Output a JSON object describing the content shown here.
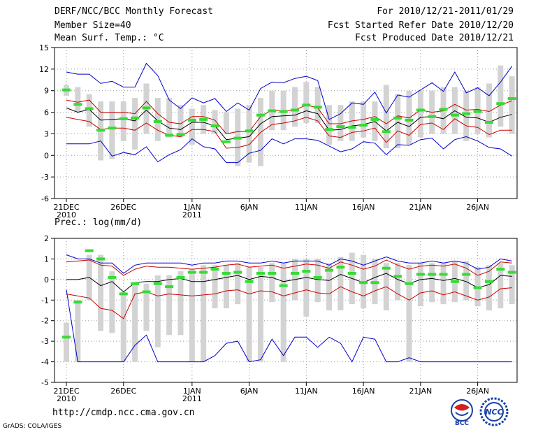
{
  "header": {
    "title": "DERF/NCC/BCC Monthly Forecast",
    "member_size": "Member Size=40",
    "variable": "Mean Surf. Temp.: °C",
    "forecast_period": "For 2010/12/21-2011/01/29",
    "start_date": "Fcst Started Refer Date 2010/12/20",
    "produced_date": "Fcst Produced Date 2010/12/21"
  },
  "footer": {
    "url": "http://cmdp.ncc.cma.gov.cn",
    "grads": "GrADS: COLA/IGES",
    "logo_left_text": "BCC",
    "logo_right_text": "NCC"
  },
  "colors": {
    "box": "#d3d3d3",
    "median": "#33dd33",
    "mean": "#000000",
    "spread": "#cc0000",
    "extreme": "#0000cc",
    "axis": "#000000"
  },
  "chart_data": [
    {
      "type": "box-ensemble",
      "title": "Mean Surf. Temp.: °C",
      "ylim": [
        -6,
        15
      ],
      "yticks": [
        -6,
        -3,
        0,
        3,
        6,
        9,
        12,
        15
      ],
      "x_tick_labels": [
        {
          "day": 1,
          "label": "21DEC",
          "sub": "2010"
        },
        {
          "day": 6,
          "label": "26DEC",
          "sub": ""
        },
        {
          "day": 12,
          "label": "1JAN",
          "sub": "2011"
        },
        {
          "day": 17,
          "label": "6JAN",
          "sub": ""
        },
        {
          "day": 22,
          "label": "11JAN",
          "sub": ""
        },
        {
          "day": 27,
          "label": "16JAN",
          "sub": ""
        },
        {
          "day": 32,
          "label": "21JAN",
          "sub": ""
        },
        {
          "day": 37,
          "label": "26JAN",
          "sub": ""
        }
      ],
      "box_low": [
        8.3,
        6,
        4,
        -0.7,
        -0.5,
        2,
        0.8,
        3,
        2,
        2.5,
        2.5,
        1.5,
        3,
        3,
        3,
        -1.5,
        -1,
        -1.5,
        3.5,
        3.5,
        4,
        4.5,
        4.5,
        1.5,
        2,
        2,
        2.5,
        2,
        1,
        1,
        1.5,
        2.5,
        3,
        3,
        3,
        2,
        3,
        2.5,
        4,
        3
      ],
      "box_high": [
        9.8,
        9.5,
        8.5,
        7.5,
        7.5,
        7.5,
        8,
        10,
        8,
        8,
        7,
        6.5,
        7,
        6.3,
        6,
        6.5,
        7,
        8,
        9,
        9,
        9.5,
        10.2,
        9.5,
        7,
        7,
        7.5,
        7.5,
        7.5,
        9.8,
        8.5,
        9,
        9,
        9,
        9.5,
        9.5,
        9,
        9.5,
        10,
        12.5,
        11
      ],
      "median": [
        9.1,
        7.1,
        6.5,
        3.5,
        3.8,
        5.1,
        5.2,
        6.6,
        4.7,
        2.8,
        2.9,
        4.9,
        5.0,
        4.1,
        1.9,
        2.4,
        3.4,
        5.6,
        6.2,
        6.1,
        6.3,
        7.0,
        6.7,
        3.6,
        4.0,
        3.9,
        4.2,
        5.0,
        3.3,
        5.2,
        4.9,
        6.3,
        5.4,
        6.4,
        5.6,
        5.8,
        6.1,
        4.6,
        7.2,
        7.9
      ],
      "mean": [
        6.6,
        6.0,
        6.4,
        4.9,
        5.0,
        5.1,
        4.8,
        6.3,
        4.8,
        3.8,
        3.6,
        4.6,
        4.6,
        4.1,
        2.2,
        2.4,
        2.6,
        4.4,
        5.4,
        5.5,
        5.6,
        6.2,
        5.8,
        3.5,
        3.6,
        4.1,
        4.3,
        4.7,
        3.4,
        4.6,
        4.0,
        5.3,
        5.4,
        5.1,
        6.2,
        5.3,
        5.2,
        4.6,
        5.3,
        5.7
      ],
      "upper_sd": [
        7.7,
        7.4,
        7.7,
        6.0,
        6.0,
        6.0,
        5.8,
        7.5,
        5.8,
        4.6,
        4.4,
        5.4,
        5.4,
        4.9,
        3.0,
        3.3,
        3.3,
        5.4,
        6.3,
        6.2,
        6.3,
        7.0,
        6.6,
        4.4,
        4.4,
        4.8,
        5.0,
        5.4,
        4.4,
        5.5,
        5.2,
        6.3,
        6.0,
        6.2,
        7.1,
        6.3,
        6.4,
        6.1,
        7.0,
        7.6
      ],
      "lower_sd": [
        5.3,
        5.0,
        4.7,
        3.6,
        3.8,
        3.8,
        3.5,
        4.5,
        3.5,
        2.8,
        2.6,
        3.6,
        3.6,
        3.3,
        1.0,
        1.1,
        1.5,
        3.2,
        4.3,
        4.5,
        4.8,
        5.3,
        4.8,
        2.7,
        2.5,
        3.2,
        3.4,
        3.8,
        1.8,
        3.4,
        2.8,
        4.3,
        4.5,
        3.6,
        5.1,
        4.1,
        3.9,
        2.9,
        3.5,
        3.5
      ],
      "max": [
        11.6,
        11.3,
        11.3,
        10.0,
        10.3,
        9.5,
        9.5,
        12.8,
        11.1,
        7.7,
        6.5,
        8.0,
        7.3,
        7.9,
        6.1,
        7.3,
        6.3,
        9.3,
        10.2,
        10.1,
        10.7,
        11.0,
        10.4,
        5.0,
        5.8,
        7.3,
        7.1,
        8.8,
        5.9,
        8.4,
        8.1,
        9.1,
        10.1,
        8.9,
        11.6,
        8.7,
        9.4,
        8.3,
        10.2,
        12.4
      ],
      "min": [
        1.6,
        1.6,
        1.6,
        2.0,
        -0.1,
        0.4,
        0.1,
        1.2,
        -0.9,
        0.1,
        0.8,
        2.3,
        1.2,
        0.9,
        -1.0,
        -1.0,
        0.3,
        0.7,
        2.3,
        1.6,
        2.3,
        2.3,
        2.1,
        1.3,
        0.5,
        0.9,
        1.9,
        1.7,
        0.1,
        1.5,
        1.4,
        2.2,
        2.4,
        0.9,
        2.2,
        2.6,
        2.0,
        1.1,
        0.9,
        -0.1
      ]
    },
    {
      "type": "box-ensemble",
      "title": "Prec.: log(mm/d)",
      "ylim": [
        -5,
        2
      ],
      "yticks": [
        -5,
        -4,
        -3,
        -2,
        -1,
        0,
        1,
        2
      ],
      "x_tick_labels": [
        {
          "day": 1,
          "label": "21DEC",
          "sub": "2010"
        },
        {
          "day": 6,
          "label": "26DEC",
          "sub": ""
        },
        {
          "day": 12,
          "label": "1JAN",
          "sub": "2011"
        },
        {
          "day": 17,
          "label": "6JAN",
          "sub": ""
        },
        {
          "day": 22,
          "label": "11JAN",
          "sub": ""
        },
        {
          "day": 27,
          "label": "16JAN",
          "sub": ""
        },
        {
          "day": 32,
          "label": "21JAN",
          "sub": ""
        },
        {
          "day": 37,
          "label": "26JAN",
          "sub": ""
        }
      ],
      "box_low": [
        -4,
        -4,
        -1,
        -2.5,
        -2.6,
        -4,
        -4,
        -2.5,
        -3.3,
        -2.7,
        -2.7,
        -4,
        -4,
        -1.4,
        -1.4,
        -1.2,
        -4,
        -4,
        -1.1,
        -4,
        -1.0,
        -1.8,
        -1.1,
        -1.5,
        -1.5,
        -1.2,
        -1.4,
        -1.2,
        -1.5,
        -1.0,
        -4,
        -1.3,
        -1.1,
        -1.2,
        -1.1,
        -1.0,
        -1.3,
        -1.5,
        -1.4,
        -1.2
      ],
      "box_high": [
        -2.1,
        -1.0,
        1.2,
        1.2,
        0.4,
        -0.6,
        -0.2,
        -0.2,
        0.2,
        0.2,
        0.4,
        0.5,
        0.7,
        0.7,
        0.7,
        0.8,
        0.6,
        0.6,
        0.8,
        0.8,
        1.0,
        1.0,
        1.0,
        0.8,
        1.1,
        1.3,
        1.2,
        1.0,
        0.8,
        0.8,
        0.7,
        0.8,
        0.8,
        0.8,
        0.9,
        0.9,
        0.6,
        0.7,
        0.8,
        0.7
      ],
      "median": [
        -2.8,
        -1.1,
        1.4,
        1.0,
        0.1,
        -0.7,
        -0.2,
        -0.6,
        -0.2,
        -0.35,
        0.1,
        0.35,
        0.35,
        0.5,
        0.3,
        0.35,
        -0.1,
        0.3,
        0.3,
        -0.3,
        0.3,
        0.4,
        0.1,
        0.45,
        0.6,
        0.3,
        -0.15,
        -0.15,
        0.55,
        0.15,
        -0.2,
        0.25,
        0.25,
        0.25,
        -0.1,
        0.25,
        -0.4,
        -0.1,
        0.5,
        0.35
      ],
      "mean": [
        0.0,
        0.0,
        0.1,
        -0.3,
        -0.1,
        -0.6,
        -0.15,
        -0.1,
        -0.1,
        0.0,
        0.05,
        -0.1,
        -0.1,
        0.0,
        0.1,
        0.2,
        0.0,
        0.15,
        0.1,
        -0.1,
        0.0,
        0.1,
        0.0,
        -0.05,
        0.25,
        0.05,
        -0.15,
        0.1,
        0.3,
        0.0,
        -0.2,
        0.0,
        0.05,
        -0.05,
        0.05,
        -0.1,
        -0.4,
        -0.25,
        0.2,
        0.15
      ],
      "upper_sd": [
        0.85,
        0.9,
        0.95,
        0.7,
        0.65,
        0.2,
        0.5,
        0.65,
        0.6,
        0.6,
        0.55,
        0.5,
        0.55,
        0.6,
        0.7,
        0.75,
        0.6,
        0.65,
        0.7,
        0.55,
        0.65,
        0.75,
        0.7,
        0.55,
        0.85,
        0.7,
        0.5,
        0.65,
        0.95,
        0.7,
        0.5,
        0.65,
        0.7,
        0.65,
        0.75,
        0.55,
        0.2,
        0.4,
        0.85,
        0.8
      ],
      "lower_sd": [
        -0.7,
        -0.8,
        -0.9,
        -1.4,
        -1.5,
        -1.9,
        -0.7,
        -0.6,
        -0.8,
        -0.7,
        -0.75,
        -0.8,
        -0.75,
        -0.7,
        -0.55,
        -0.5,
        -0.7,
        -0.55,
        -0.6,
        -0.8,
        -0.65,
        -0.5,
        -0.65,
        -0.7,
        -0.35,
        -0.6,
        -0.8,
        -0.55,
        -0.35,
        -0.7,
        -1.0,
        -0.65,
        -0.55,
        -0.75,
        -0.6,
        -0.8,
        -1.0,
        -0.85,
        -0.45,
        -0.4
      ],
      "max": [
        1.2,
        1.0,
        1.0,
        0.8,
        0.8,
        0.3,
        0.7,
        0.8,
        0.8,
        0.8,
        0.8,
        0.7,
        0.8,
        0.8,
        0.9,
        0.9,
        0.8,
        0.8,
        0.9,
        0.8,
        0.9,
        0.9,
        0.9,
        0.7,
        1.0,
        0.9,
        0.7,
        0.9,
        1.1,
        0.9,
        0.8,
        0.8,
        0.9,
        0.8,
        0.9,
        0.8,
        0.5,
        0.6,
        1.0,
        0.9
      ],
      "min": [
        -0.5,
        -4,
        -4,
        -4,
        -4,
        -4,
        -3.2,
        -2.7,
        -4,
        -4,
        -4,
        -4,
        -4,
        -3.7,
        -3.1,
        -3.0,
        -4,
        -3.9,
        -2.9,
        -3.7,
        -2.8,
        -2.8,
        -3.3,
        -2.8,
        -3.1,
        -4,
        -2.8,
        -2.9,
        -4,
        -4,
        -3.8,
        -4,
        -4,
        -4,
        -4,
        -4,
        -4,
        -4,
        -4,
        -4
      ]
    }
  ]
}
